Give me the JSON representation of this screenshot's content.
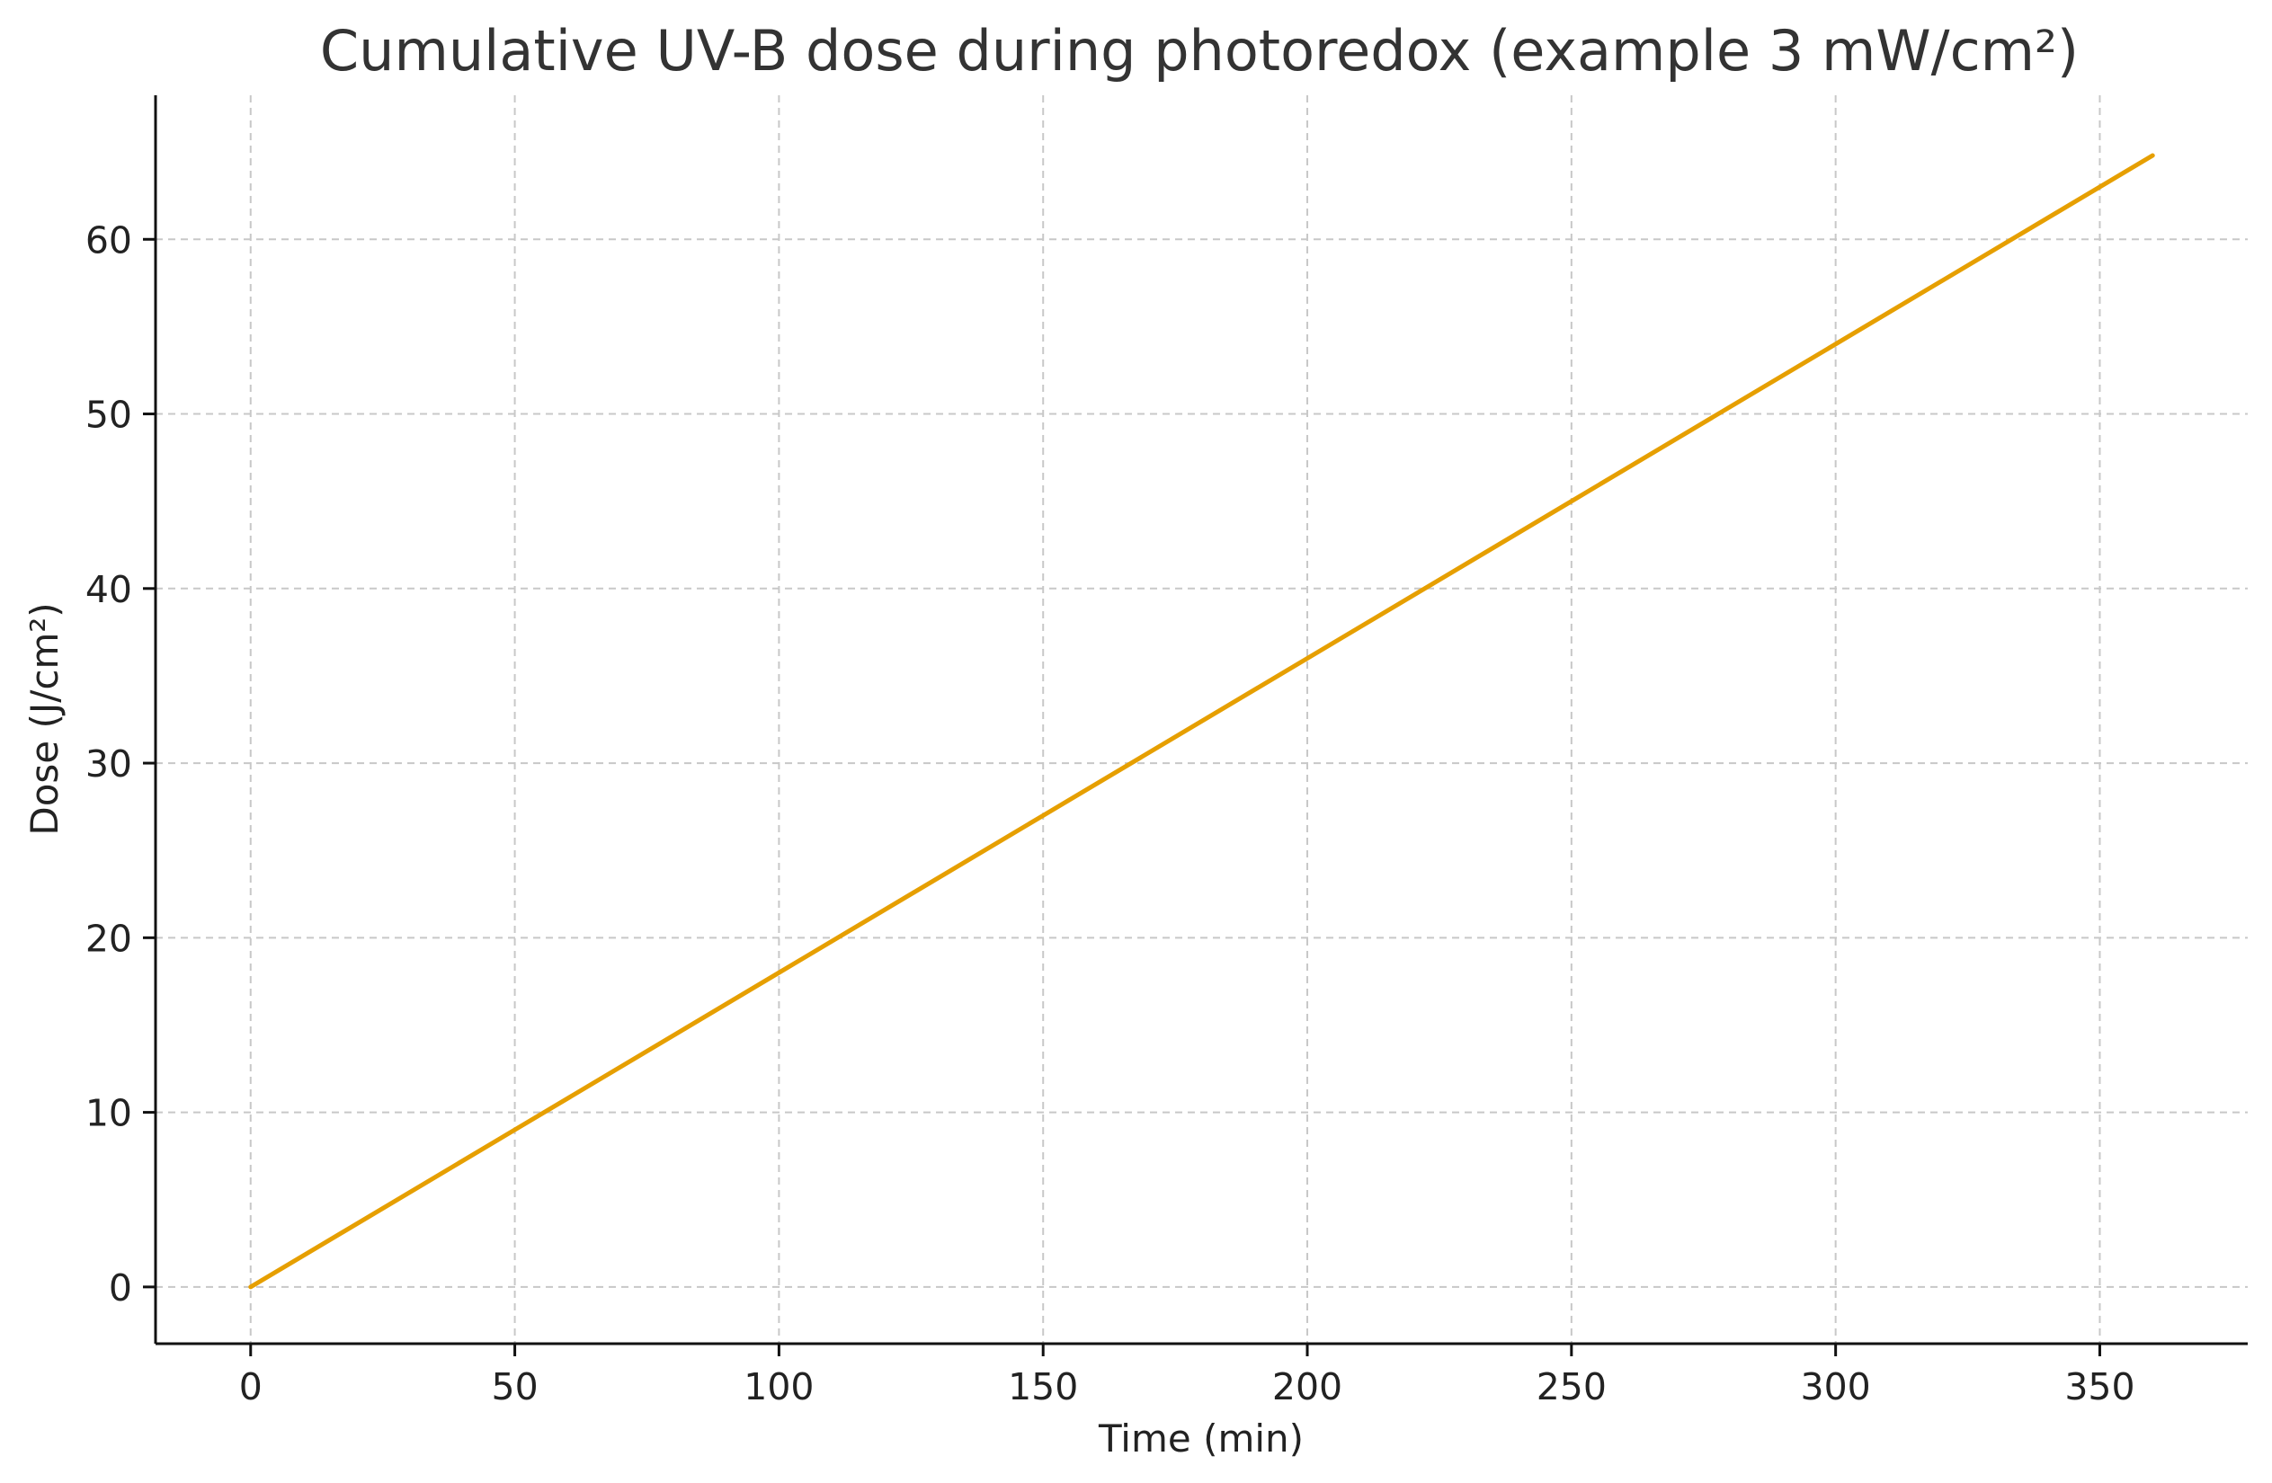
{
  "chart_data": {
    "type": "line",
    "title": "Cumulative UV-B dose during photoredox (example 3 mW/cm²)",
    "xlabel": "Time (min)",
    "ylabel": "Dose (J/cm²)",
    "xlim": [
      -18,
      378
    ],
    "ylim": [
      -3.25,
      68.25
    ],
    "xticks": [
      0,
      50,
      100,
      150,
      200,
      250,
      300,
      350
    ],
    "yticks": [
      0,
      10,
      20,
      30,
      40,
      50,
      60
    ],
    "grid": true,
    "series": [
      {
        "color": "#E69F00",
        "x": [
          0,
          50,
          100,
          150,
          200,
          250,
          300,
          360
        ],
        "y": [
          0,
          9,
          18,
          27,
          36,
          45,
          54,
          64.8
        ]
      }
    ]
  }
}
